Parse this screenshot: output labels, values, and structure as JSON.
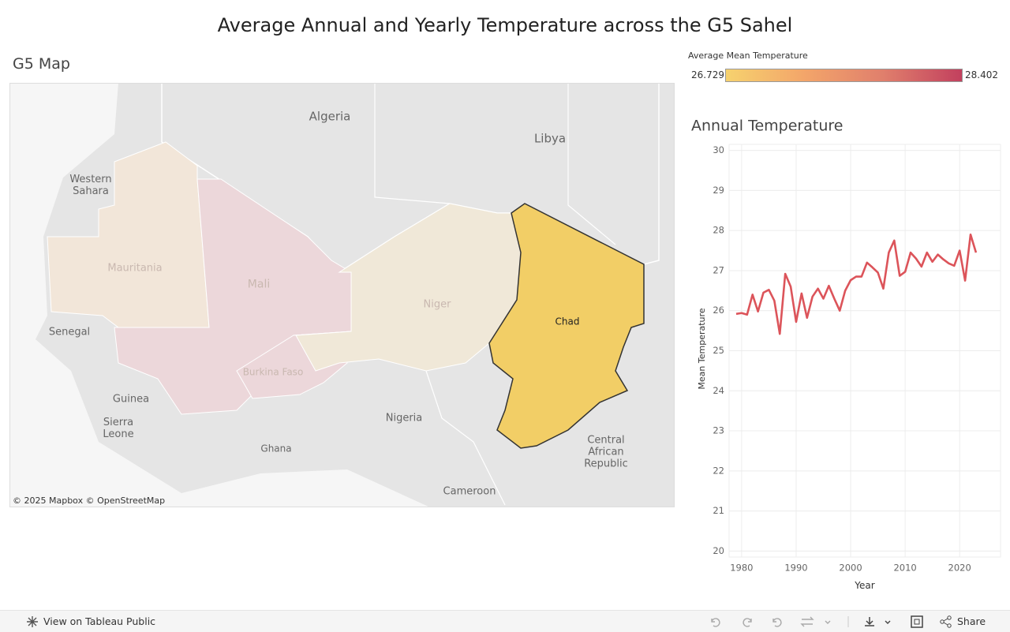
{
  "header": {
    "title": "Average Annual and Yearly Temperature across the G5 Sahel"
  },
  "map": {
    "title": "G5 Map",
    "attribution": "© 2025 Mapbox © OpenStreetMap",
    "labels": [
      "Algeria",
      "Libya",
      "Western Sahara",
      "Mauritania",
      "Mali",
      "Niger",
      "Burkina Faso",
      "Chad",
      "Senegal",
      "Guinea",
      "Sierra Leone",
      "Ghana",
      "Nigeria",
      "Central African Republic",
      "Cameroon"
    ]
  },
  "legend": {
    "title": "Average Mean Temperature",
    "min": 26.729,
    "max": 28.402,
    "colors": [
      "#f6d26e",
      "#f3a56a",
      "#e07f6c",
      "#c2405e"
    ]
  },
  "chart_data": {
    "type": "line",
    "title": "Annual Temperature",
    "x_label": "Year",
    "y_label": "Mean Temperature",
    "x": [
      1979,
      1980,
      1981,
      1982,
      1983,
      1984,
      1985,
      1986,
      1987,
      1988,
      1989,
      1990,
      1991,
      1992,
      1993,
      1994,
      1995,
      1996,
      1997,
      1998,
      1999,
      2000,
      2001,
      2002,
      2003,
      2004,
      2005,
      2006,
      2007,
      2008,
      2009,
      2010,
      2011,
      2012,
      2013,
      2014,
      2015,
      2016,
      2017,
      2018,
      2019,
      2020,
      2021,
      2022,
      2023
    ],
    "values": [
      25.92,
      25.94,
      25.9,
      26.4,
      25.98,
      26.45,
      26.52,
      26.25,
      25.42,
      26.92,
      26.6,
      25.72,
      26.43,
      25.82,
      26.35,
      26.55,
      26.3,
      26.62,
      26.3,
      26.0,
      26.5,
      26.76,
      26.85,
      26.85,
      27.2,
      27.08,
      26.95,
      26.55,
      27.45,
      27.75,
      26.87,
      26.97,
      27.45,
      27.3,
      27.1,
      27.45,
      27.22,
      27.4,
      27.28,
      27.18,
      27.12,
      27.5,
      26.75,
      27.9,
      27.45
    ],
    "color": "#dc545a",
    "xlim": [
      1977.7,
      2027.5
    ],
    "ylim": [
      19.85,
      30.15
    ],
    "xticks": [
      1980,
      1990,
      2000,
      2010,
      2020
    ],
    "yticks": [
      20,
      21,
      22,
      23,
      24,
      25,
      26,
      27,
      28,
      29,
      30
    ],
    "grid": true
  },
  "toolbar": {
    "view": "View on Tableau Public",
    "share": "Share"
  }
}
